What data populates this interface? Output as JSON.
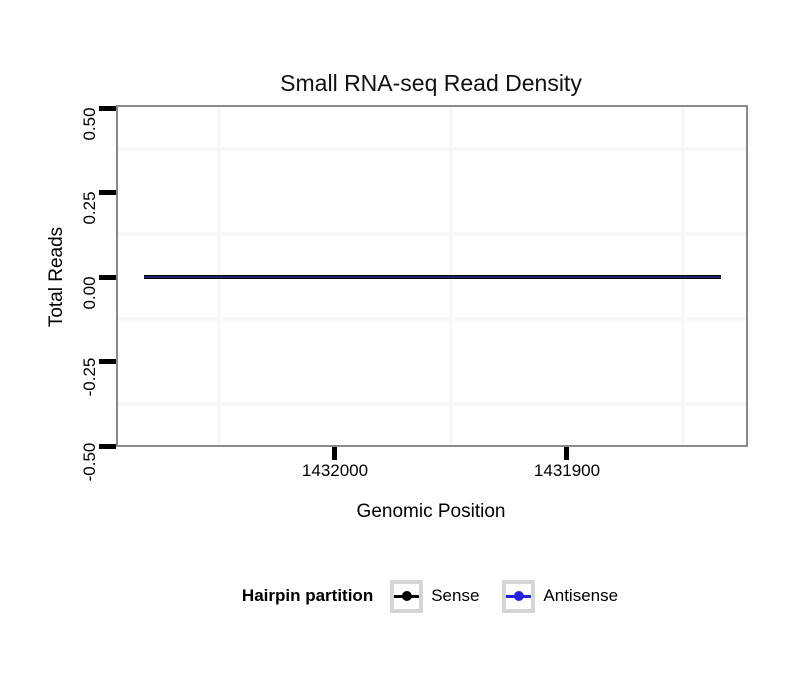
{
  "figure": {
    "title": "Small RNA-seq Read Density"
  },
  "x_axis": {
    "label": "Genomic Position",
    "tick_labels": [
      "1432000",
      "1431900"
    ],
    "reversed": true
  },
  "y_axis": {
    "label": "Total Reads",
    "tick_labels": [
      "0.50",
      "0.25",
      "0.00",
      "-0.25",
      "-0.50"
    ]
  },
  "legend": {
    "title": "Hairpin partition",
    "items": [
      {
        "label": "Sense",
        "color": "#000000"
      },
      {
        "label": "Antisense",
        "color": "#2424e0"
      }
    ]
  },
  "colors": {
    "panel_border": "#8a8a8a",
    "minor_gridline": "#f8f8f8",
    "tick_marks": "#000000",
    "overlapping_line": "#20206a"
  },
  "chart_data": {
    "type": "line",
    "title": "Small RNA-seq Read Density",
    "xlabel": "Genomic Position",
    "ylabel": "Total Reads",
    "x_tick_values": [
      1432000,
      1431900
    ],
    "x_axis_reversed": true,
    "xlim": [
      1432093,
      1431822
    ],
    "ylim": [
      -0.5,
      0.5
    ],
    "y_tick_values": [
      0.5,
      0.25,
      0.0,
      -0.25,
      -0.5
    ],
    "grid": "minor gridlines only, very light gray; no visible major gridlines",
    "legend_position": "bottom",
    "legend_title": "Hairpin partition",
    "series": [
      {
        "name": "Sense",
        "color": "#000000",
        "x": [
          1432082,
          1431834
        ],
        "y": [
          0,
          0
        ]
      },
      {
        "name": "Antisense",
        "color": "#2424e0",
        "x": [
          1432082,
          1431834
        ],
        "y": [
          0,
          0
        ]
      }
    ],
    "note": "Both series are flat at 0 reads and overlap, rendering as a single dark navy horizontal line across the hairpin span."
  }
}
